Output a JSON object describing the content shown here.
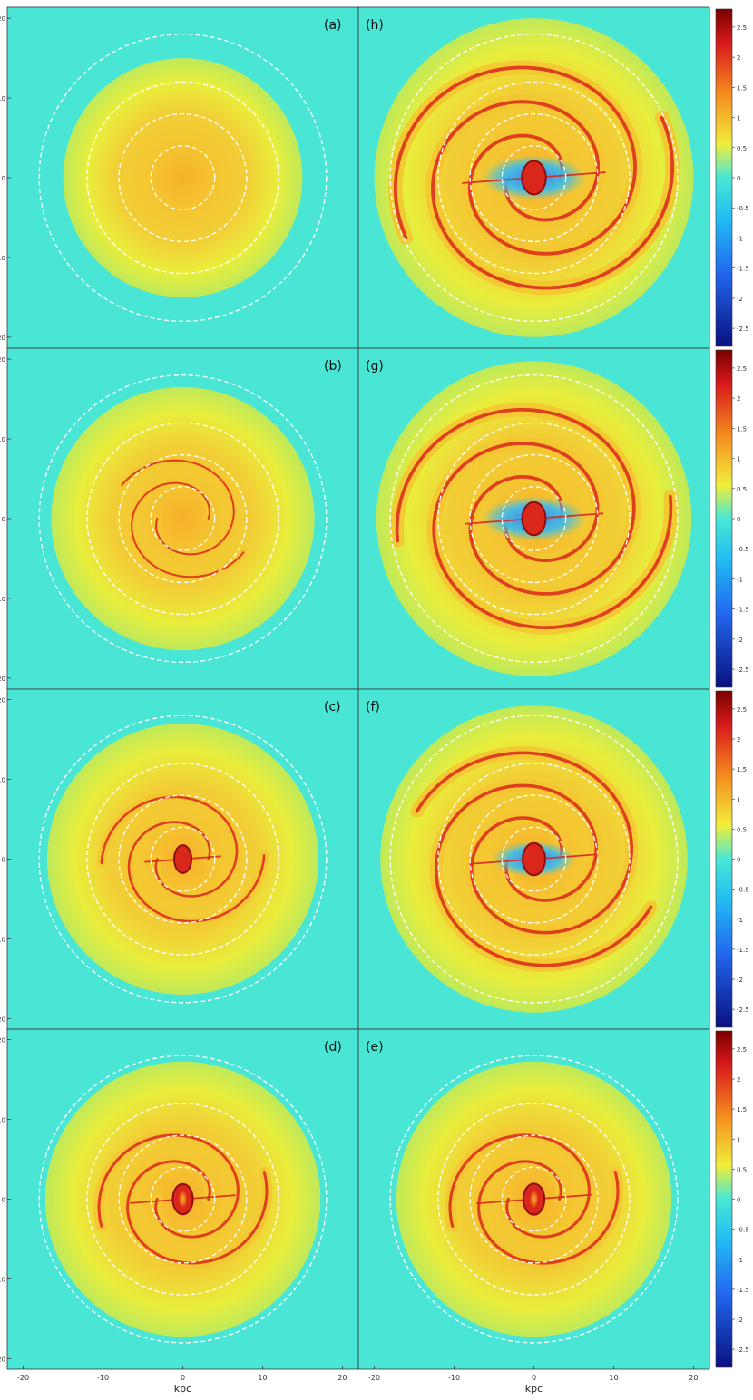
{
  "panels": [
    {
      "label": "(a)",
      "col": 0,
      "row": 0,
      "arm_strength": 0.0,
      "arm_extent": 0.0,
      "bar_strength": 0.0,
      "bulge": 0.0,
      "void": 0.0
    },
    {
      "label": "(h)",
      "col": 1,
      "row": 0,
      "arm_strength": 1.0,
      "arm_extent": 1.0,
      "bar_strength": 1.0,
      "bulge": 0.0,
      "void": 1.0
    },
    {
      "label": "(b)",
      "col": 0,
      "row": 1,
      "arm_strength": 0.35,
      "arm_extent": 0.3,
      "bar_strength": 0.0,
      "bulge": 0.0,
      "void": 0.0
    },
    {
      "label": "(g)",
      "col": 1,
      "row": 1,
      "arm_strength": 0.95,
      "arm_extent": 0.95,
      "bar_strength": 0.95,
      "bulge": 0.0,
      "void": 1.0
    },
    {
      "label": "(c)",
      "col": 0,
      "row": 2,
      "arm_strength": 0.55,
      "arm_extent": 0.4,
      "bar_strength": 0.3,
      "bulge": 0.0,
      "void": 0.0
    },
    {
      "label": "(f)",
      "col": 1,
      "row": 2,
      "arm_strength": 0.9,
      "arm_extent": 0.85,
      "bar_strength": 0.85,
      "bulge": 0.0,
      "void": 0.8
    },
    {
      "label": "(d)",
      "col": 0,
      "row": 3,
      "arm_strength": 0.7,
      "arm_extent": 0.45,
      "bar_strength": 0.6,
      "bulge": 0.6,
      "void": 0.0
    },
    {
      "label": "(e)",
      "col": 1,
      "row": 3,
      "arm_strength": 0.75,
      "arm_extent": 0.45,
      "bar_strength": 0.7,
      "bulge": 0.9,
      "void": 0.0
    }
  ],
  "axes": {
    "xlabel": "kpc",
    "x_ticks": [
      "-20",
      "-10",
      "0",
      "10",
      "20"
    ],
    "y_ticks": [
      "20",
      "10",
      "0",
      "-10",
      "-20"
    ]
  },
  "colorbar": {
    "ticks": [
      "2.5",
      "2",
      "1.5",
      "1",
      "0.5",
      "0",
      "-0.5",
      "-1",
      "-1.5",
      "-2",
      "-2.5"
    ]
  },
  "colors": {
    "outer": "#49e6d6",
    "disk_yellow": "#e9ee3c",
    "disk_orange": "#f4c732",
    "center_orange": "#f7b12b",
    "arm_red": "#d9281b",
    "dark_red": "#8f0c0c",
    "void_blue": "#3b7cf3",
    "ring_white": "#ffffff"
  },
  "circle_radii_kpc": [
    4,
    8,
    12,
    18
  ]
}
